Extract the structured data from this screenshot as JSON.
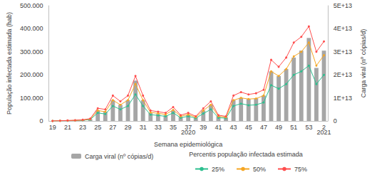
{
  "chart_data": {
    "type": "bar",
    "x_label": "Semana epidemiológica",
    "y_label": "População infectada estimada (hab)",
    "y2_label": "Carga viral (nº cópias/d)",
    "legend_title": "Percentis população infectada estimada",
    "categories": [
      "19",
      null,
      "21",
      null,
      "23",
      null,
      "25",
      null,
      "27",
      null,
      "29",
      null,
      "31",
      null,
      "33",
      null,
      "35",
      null,
      "37",
      null,
      "39",
      null,
      "41",
      null,
      "43",
      null,
      "45",
      null,
      "47",
      null,
      "49",
      null,
      "51",
      null,
      "53",
      null,
      "2"
    ],
    "annotations": [
      {
        "text": "2020",
        "x": "37"
      },
      {
        "text": "2021",
        "x": "2"
      }
    ],
    "series": [
      {
        "name": "Carga viral (nº cópias/d)",
        "type": "bar",
        "axis": "y2",
        "color": "#a6a6a6",
        "values": [
          0,
          100000000000.0,
          150000000000.0,
          250000000000.0,
          400000000000.0,
          800000000000.0,
          4500000000000.0,
          4000000000000.0,
          9000000000000.0,
          7000000000000.0,
          9000000000000.0,
          17500000000000.0,
          9000000000000.0,
          3500000000000.0,
          3000000000000.0,
          2500000000000.0,
          4500000000000.0,
          1800000000000.0,
          2700000000000.0,
          1500000000000.0,
          4500000000000.0,
          7000000000000.0,
          2000000000000.0,
          1500000000000.0,
          9000000000000.0,
          10000000000000.0,
          9500000000000.0,
          9800000000000.0,
          11000000000000.0,
          21500000000000.0,
          19500000000000.0,
          22500000000000.0,
          27500000000000.0,
          30500000000000.0,
          36000000000000.0,
          23000000000000.0,
          30500000000000.0
        ]
      },
      {
        "name": "25%",
        "type": "line",
        "color": "#2dbf8f",
        "marker": "circle",
        "values": [
          0,
          600,
          1000,
          2000,
          3000,
          6000,
          35000,
          30000,
          65000,
          50000,
          65000,
          115000,
          65000,
          27000,
          24000,
          20000,
          35000,
          14000,
          20000,
          12000,
          32000,
          50000,
          14000,
          12000,
          65000,
          75000,
          68000,
          70000,
          80000,
          155000,
          140000,
          160000,
          200000,
          215000,
          240000,
          160000,
          200000
        ]
      },
      {
        "name": "50%",
        "type": "line",
        "color": "#f5a623",
        "marker": "circle",
        "values": [
          0,
          800,
          1500,
          2500,
          4000,
          8000,
          45000,
          40000,
          90000,
          70000,
          90000,
          160000,
          90000,
          37000,
          33000,
          28000,
          48000,
          20000,
          28000,
          16000,
          45000,
          70000,
          20000,
          16000,
          90000,
          100000,
          95000,
          97000,
          110000,
          215000,
          195000,
          225000,
          280000,
          300000,
          340000,
          240000,
          285000
        ]
      },
      {
        "name": "75%",
        "type": "line",
        "color": "#ff4d4d",
        "marker": "circle",
        "values": [
          0,
          1000,
          2000,
          3000,
          5000,
          10000,
          55000,
          50000,
          110000,
          85000,
          110000,
          195000,
          110000,
          45000,
          40000,
          35000,
          60000,
          25000,
          35000,
          20000,
          55000,
          85000,
          25000,
          20000,
          110000,
          125000,
          115000,
          120000,
          135000,
          265000,
          235000,
          275000,
          340000,
          365000,
          410000,
          300000,
          345000
        ]
      }
    ],
    "ylim": [
      0,
      500000
    ],
    "yticks": [
      0,
      {
        "value": 100000,
        "label": "100.000"
      },
      {
        "value": 200000,
        "label": "200.000"
      },
      {
        "value": 300000,
        "label": "300.000"
      },
      {
        "value": 400000,
        "label": "400.000"
      },
      {
        "value": 500000,
        "label": "500.000"
      }
    ],
    "y2lim": [
      0,
      50000000000000.0
    ],
    "y2ticks": [
      0,
      {
        "value": 10000000000000.0,
        "label": "1E+13"
      },
      {
        "value": 20000000000000.0,
        "label": "2E+13"
      },
      {
        "value": 30000000000000.0,
        "label": "3E+13"
      },
      {
        "value": 40000000000000.0,
        "label": "4E+13"
      },
      {
        "value": 50000000000000.0,
        "label": "5E+13"
      }
    ],
    "grid": false
  }
}
